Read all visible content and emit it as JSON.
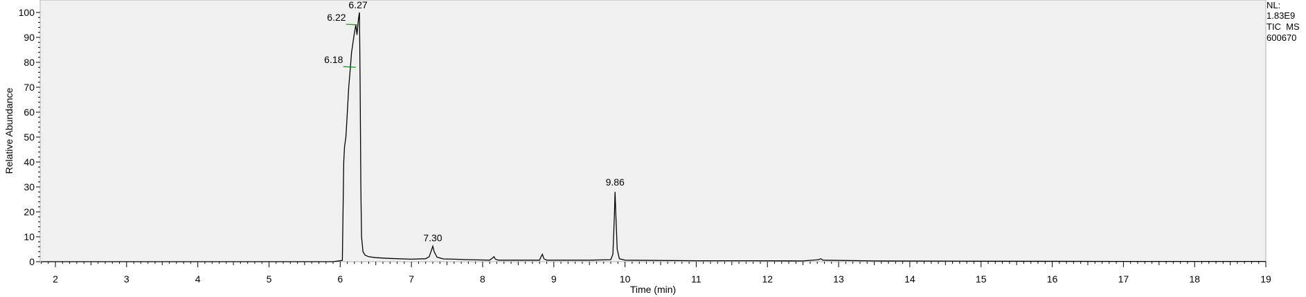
{
  "chart_data": {
    "type": "line",
    "xlabel": "Time (min)",
    "ylabel": "Relative Abundance",
    "xlim": [
      1.8,
      19.0
    ],
    "ylim": [
      0,
      100
    ],
    "x_ticks": [
      2,
      3,
      4,
      5,
      6,
      7,
      8,
      9,
      10,
      11,
      12,
      13,
      14,
      15,
      16,
      17,
      18,
      19
    ],
    "y_ticks": [
      0,
      10,
      20,
      30,
      40,
      50,
      60,
      70,
      80,
      90,
      100
    ],
    "x_tick_labels": [
      "2",
      "3",
      "4",
      "5",
      "6",
      "7",
      "8",
      "9",
      "10",
      "11",
      "12",
      "13",
      "14",
      "15",
      "16",
      "17",
      "18",
      "19"
    ],
    "y_tick_labels": [
      "0",
      "10",
      "20",
      "30",
      "40",
      "50",
      "60",
      "70",
      "80",
      "90",
      "100"
    ],
    "grid": false,
    "series": [
      {
        "x": [
          1.8,
          5.9,
          6.03,
          6.05,
          6.06,
          6.08,
          6.1,
          6.12,
          6.14,
          6.16,
          6.18,
          6.2,
          6.22,
          6.235,
          6.245,
          6.255,
          6.265,
          6.27,
          6.28,
          6.29,
          6.3,
          6.32,
          6.35,
          6.4,
          6.5,
          6.7,
          7.0,
          7.2,
          7.25,
          7.28,
          7.3,
          7.32,
          7.36,
          7.45,
          7.6,
          7.8,
          8.1,
          8.14,
          8.16,
          8.18,
          8.22,
          8.5,
          8.8,
          8.82,
          8.84,
          8.86,
          8.9,
          9.5,
          9.8,
          9.83,
          9.85,
          9.86,
          9.87,
          9.89,
          9.92,
          10.0,
          11.0,
          11.8,
          12.5,
          12.72,
          12.75,
          12.78,
          13.5,
          15.0,
          17.0,
          19.0
        ],
        "y": [
          0,
          0,
          0.5,
          40,
          46,
          50,
          60,
          70,
          77,
          84,
          88,
          92,
          95,
          91,
          94,
          97,
          99,
          100,
          70,
          30,
          10,
          4,
          2.6,
          2.0,
          1.6,
          1.3,
          1.0,
          1.2,
          2.0,
          4.5,
          6.2,
          4.0,
          1.8,
          1.1,
          1.0,
          0.8,
          0.6,
          1.5,
          2.0,
          1.0,
          0.6,
          0.6,
          0.6,
          2.0,
          3.0,
          1.2,
          0.6,
          0.6,
          0.8,
          3,
          18,
          28,
          20,
          5,
          1.2,
          0.6,
          0.4,
          0.4,
          0.3,
          0.8,
          1.2,
          0.6,
          0.3,
          0.2,
          0.1,
          0.1
        ]
      }
    ],
    "peak_labels": [
      {
        "x": 6.27,
        "y": 100,
        "text": "6.27"
      },
      {
        "x": 6.22,
        "y": 95,
        "text": "6.22"
      },
      {
        "x": 6.18,
        "y": 78,
        "text": "6.18"
      },
      {
        "x": 7.3,
        "y": 6.2,
        "text": "7.30"
      },
      {
        "x": 9.86,
        "y": 28,
        "text": "9.86"
      }
    ],
    "colors": {
      "background": "#f0f0f0",
      "trace": "#000000",
      "integration_marker": "#2e8b2e"
    }
  },
  "info": {
    "nl_label": "NL:",
    "nl_value": "1.83E9",
    "filter": "TIC  MS",
    "sample": "600670"
  }
}
